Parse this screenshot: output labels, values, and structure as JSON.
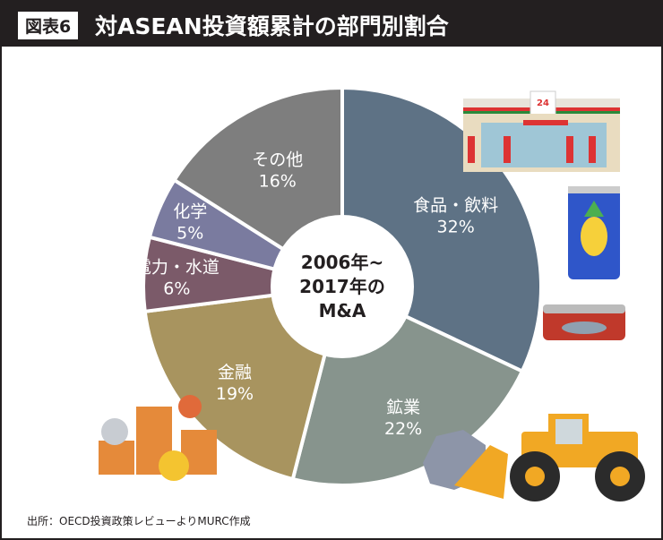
{
  "header": {
    "badge": "図表6",
    "title": "対ASEAN投資額累計の部門別割合"
  },
  "source": "出所：OECD投資政策レビューよりMURC作成",
  "chart_data": {
    "type": "pie",
    "center_label": [
      "2006年~",
      "2017年の",
      "M&A"
    ],
    "categories": [
      "食品・飲料",
      "鉱業",
      "金融",
      "電力・水道",
      "化学",
      "その他"
    ],
    "values": [
      32,
      22,
      19,
      6,
      5,
      16
    ],
    "value_labels": [
      "32%",
      "22%",
      "19%",
      "6%",
      "5%",
      "16%"
    ],
    "colors": [
      "#5e7285",
      "#87948d",
      "#a8945f",
      "#7b5a69",
      "#7a7b9f",
      "#7e7e7e"
    ],
    "start": "12 o'clock, clockwise"
  },
  "illustrations": [
    "store-icon",
    "pineapple-can-icon",
    "sardine-can-icon",
    "coins-icon",
    "bulldozer-icon",
    "ore-icon"
  ],
  "store_sign": "24"
}
